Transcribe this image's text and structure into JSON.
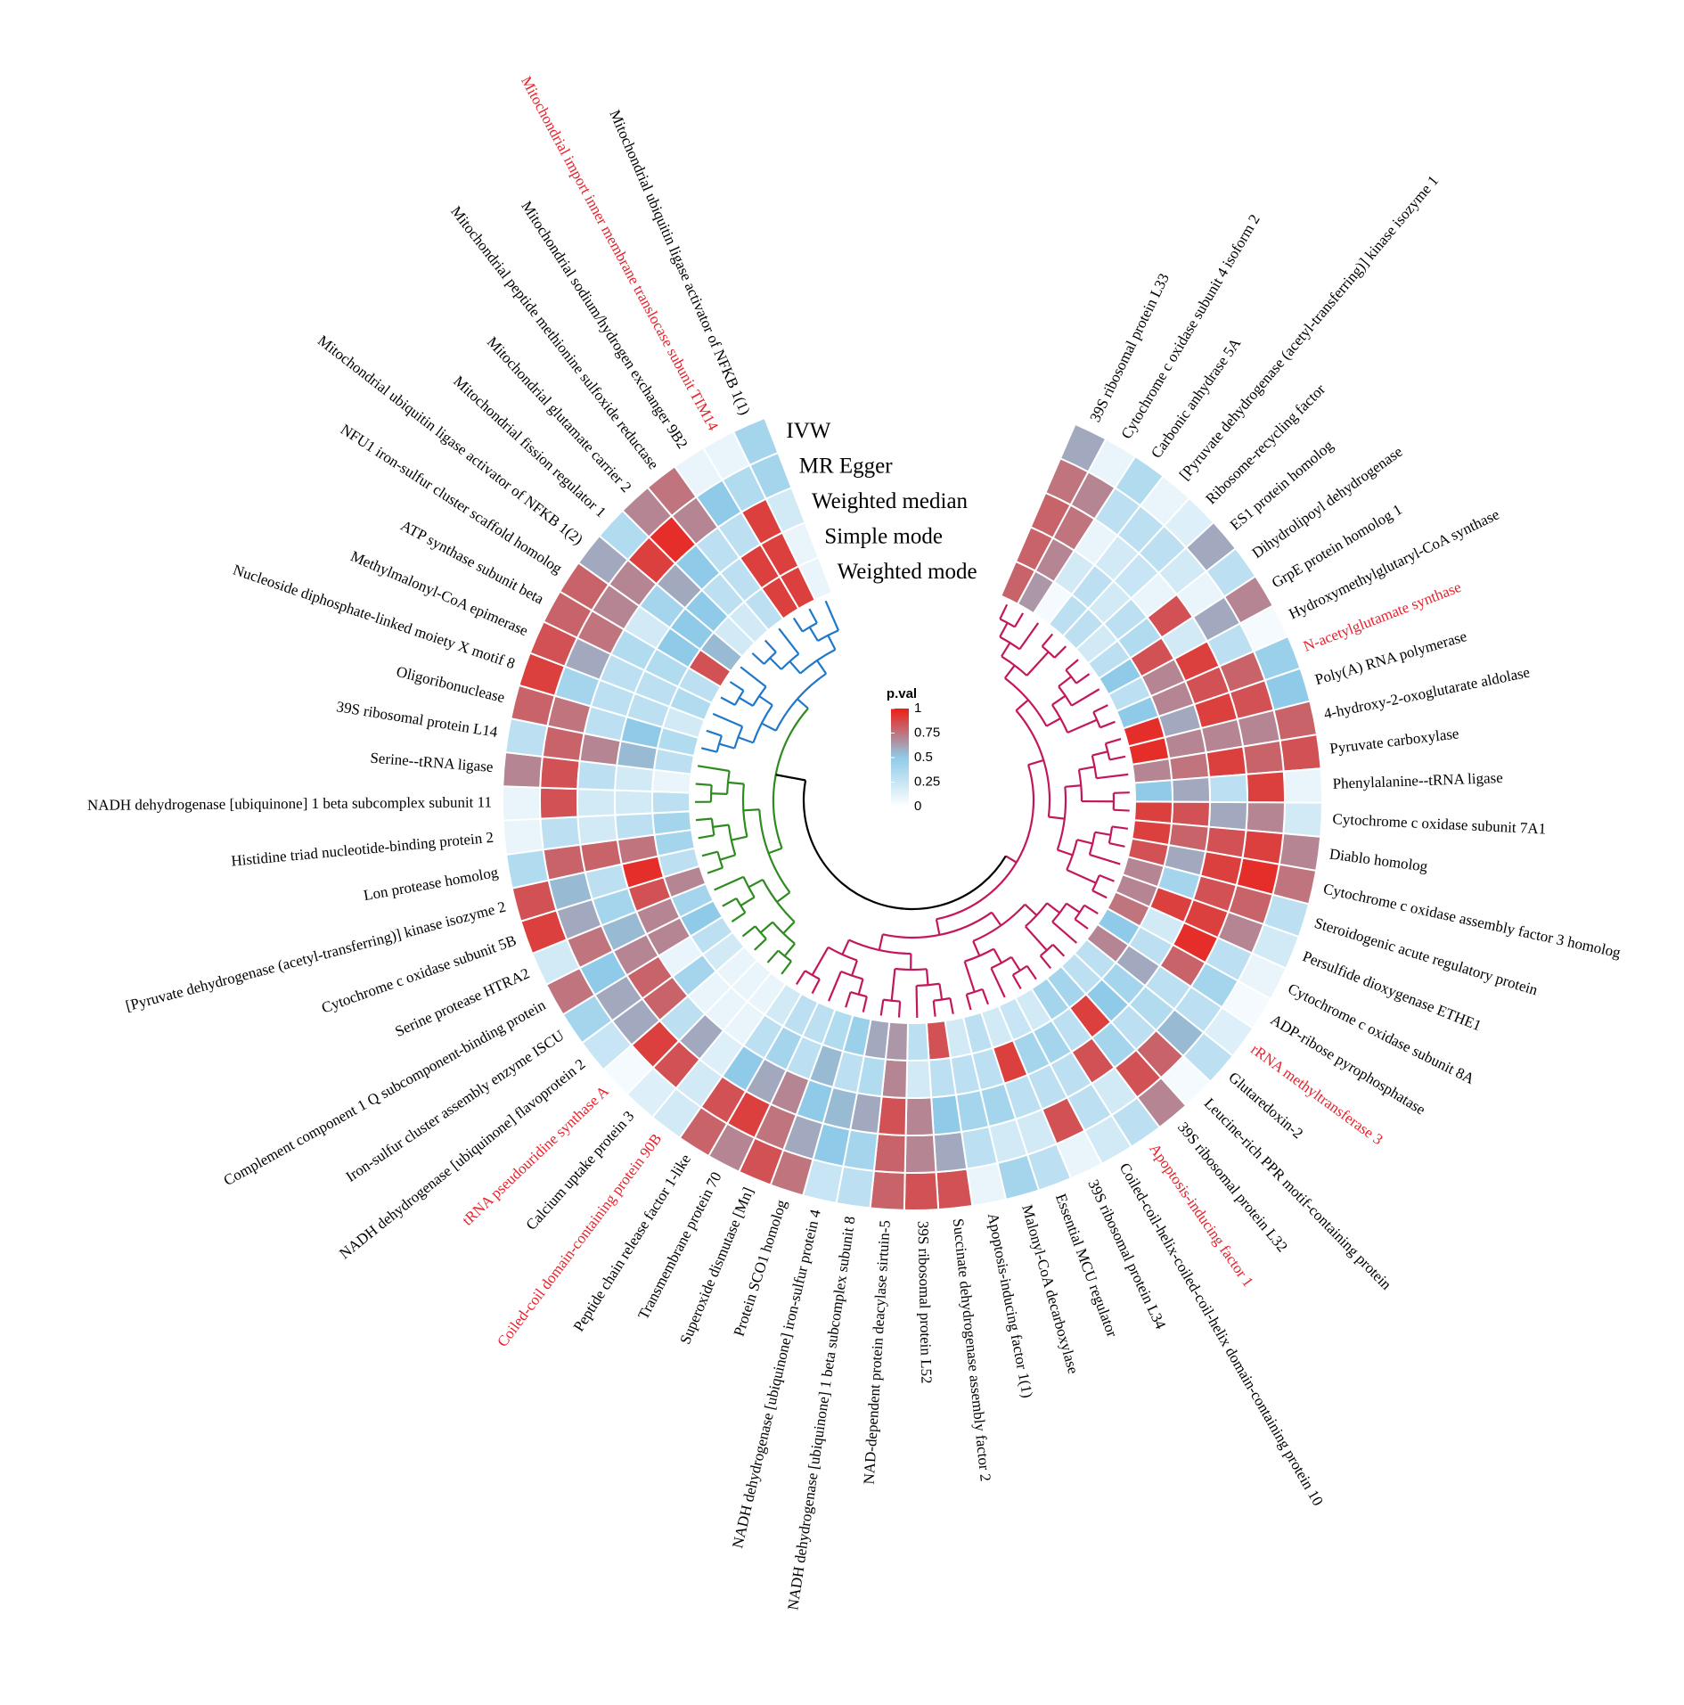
{
  "chart_data": {
    "type": "circular-heatmap",
    "categories": [
      "39S ribosomal protein L33",
      "Cytochrome c oxidase subunit 4 isoform 2",
      "Carbonic anhydrase 5A",
      "[Pyruvate dehydrogenase (acetyl-transferring)] kinase isozyme 1",
      "Ribosome-recycling factor",
      "ES1 protein homolog",
      "Dihydrolipoyl dehydrogenase",
      "GrpE protein homolog 1",
      "Hydroxymethylglutaryl-CoA synthase",
      "N-acetylglutamate synthase",
      "Poly(A) RNA polymerase",
      "4-hydroxy-2-oxoglutarate aldolase",
      "Pyruvate carboxylase",
      "Phenylalanine--tRNA ligase",
      "Cytochrome c oxidase subunit 7A1",
      "Diablo homolog",
      "Cytochrome c oxidase assembly factor 3 homolog",
      "Steroidogenic acute regulatory protein",
      "Persulfide dioxygenase ETHE1",
      "Cytochrome c oxidase subunit 8A",
      "ADP-ribose pyrophosphatase",
      "rRNA methyltransferase 3",
      "Glutaredoxin-2",
      "Leucine-rich PPR motif-containing protein",
      "39S ribosomal protein L32",
      "Apoptosis-inducing factor 1",
      "Coiled-coil-helix-coiled-coil-helix domain-containing protein 10",
      "39S ribosomal protein L34",
      "Essential MCU regulator",
      "Malonyl-CoA decarboxylase",
      "Apoptosis-inducing factor 1(1)",
      "Succinate dehydrogenase assembly factor 2",
      "39S ribosomal protein L52",
      "NAD-dependent protein deacylase sirtuin-5",
      "NADH dehydrogenase [ubiquinone] 1 beta subcomplex subunit 8",
      "NADH dehydrogenase [ubiquinone] iron-sulfur protein 4",
      "Protein SCO1 homolog",
      "Superoxide dismutase [Mn]",
      "Transmembrane protein 70",
      "Peptide chain release factor 1-like",
      "Coiled-coil domain-containing protein 90B",
      "Calcium uptake protein 3",
      "tRNA pseudouridine synthase A",
      "NADH dehydrogenase [ubiquinone] flavoprotein 2",
      "Iron-sulfur cluster assembly enzyme ISCU",
      "Complement component 1 Q subcomponent-binding protein",
      "Serine protease HTRA2",
      "Cytochrome c oxidase subunit 5B",
      "[Pyruvate dehydrogenase (acetyl-transferring)] kinase isozyme 2",
      "Lon protease homolog",
      "Histidine triad nucleotide-binding protein 2",
      "NADH dehydrogenase [ubiquinone] 1 beta subcomplex subunit 11",
      "Serine--tRNA ligase",
      "39S ribosomal protein L14",
      "Oligoribonuclease",
      "Nucleoside diphosphate-linked moiety X motif 8",
      "Methylmalonyl-CoA epimerase",
      "ATP synthase subunit beta",
      "NFU1 iron-sulfur cluster scaffold homolog",
      "Mitochondrial ubiquitin ligase activator of NFKB 1(2)",
      "Mitochondrial fission regulator 1",
      "Mitochondrial glutamate carrier 2",
      "Mitochondrial peptide methionine sulfoxide reductase",
      "Mitochondrial sodium/hydrogen exchanger 9B2",
      "Mitochondrial import inner membrane translocase subunit TIM14",
      "Mitochondrial ubiquitin ligase activator of NFKB 1(1)"
    ],
    "category_colors": [
      "#000000",
      "#000000",
      "#000000",
      "#000000",
      "#000000",
      "#000000",
      "#000000",
      "#000000",
      "#000000",
      "#e8202a",
      "#000000",
      "#000000",
      "#000000",
      "#000000",
      "#000000",
      "#000000",
      "#000000",
      "#000000",
      "#000000",
      "#000000",
      "#000000",
      "#e8202a",
      "#000000",
      "#000000",
      "#000000",
      "#e8202a",
      "#000000",
      "#000000",
      "#000000",
      "#000000",
      "#000000",
      "#000000",
      "#000000",
      "#000000",
      "#000000",
      "#000000",
      "#000000",
      "#000000",
      "#000000",
      "#000000",
      "#e8202a",
      "#000000",
      "#e8202a",
      "#000000",
      "#000000",
      "#000000",
      "#000000",
      "#000000",
      "#000000",
      "#000000",
      "#000000",
      "#000000",
      "#000000",
      "#000000",
      "#000000",
      "#000000",
      "#000000",
      "#000000",
      "#000000",
      "#000000",
      "#000000",
      "#000000",
      "#000000",
      "#000000",
      "#e8202a",
      "#000000"
    ],
    "series": [
      {
        "name": "IVW",
        "values": [
          0.6,
          0.1,
          0.35,
          0.1,
          0.15,
          0.6,
          0.3,
          0.7,
          0.05,
          0.45,
          0.5,
          0.8,
          0.85,
          0.1,
          0.2,
          0.7,
          0.75,
          0.3,
          0.2,
          0.1,
          0.05,
          0.15,
          0.3,
          0.05,
          0.7,
          0.3,
          0.2,
          0.1,
          0.3,
          0.4,
          0.1,
          0.85,
          0.85,
          0.8,
          0.3,
          0.25,
          0.75,
          0.85,
          0.7,
          0.8,
          0.2,
          0.15,
          0.05,
          0.25,
          0.4,
          0.75,
          0.2,
          0.9,
          0.85,
          0.35,
          0.1,
          0.1,
          0.7,
          0.3,
          0.8,
          0.9,
          0.85,
          0.8,
          0.8,
          0.6,
          0.35,
          0.7,
          0.75,
          0.1,
          0.1,
          0.4
        ]
      },
      {
        "name": "MR Egger",
        "values": [
          0.75,
          0.7,
          0.3,
          0.3,
          0.3,
          0.2,
          0.1,
          0.6,
          0.3,
          0.8,
          0.85,
          0.7,
          0.8,
          0.9,
          0.7,
          0.9,
          0.95,
          0.8,
          0.7,
          0.3,
          0.4,
          0.3,
          0.55,
          0.8,
          0.85,
          0.2,
          0.3,
          0.85,
          0.2,
          0.2,
          0.3,
          0.6,
          0.7,
          0.8,
          0.4,
          0.5,
          0.6,
          0.75,
          0.9,
          0.85,
          0.2,
          0.85,
          0.9,
          0.6,
          0.6,
          0.5,
          0.75,
          0.6,
          0.55,
          0.8,
          0.3,
          0.85,
          0.85,
          0.8,
          0.75,
          0.4,
          0.6,
          0.75,
          0.7,
          0.7,
          0.9,
          0.95,
          0.7,
          0.5,
          0.35,
          0.4
        ]
      },
      {
        "name": "Weighted median",
        "values": [
          0.8,
          0.75,
          0.1,
          0.2,
          0.25,
          0.1,
          0.85,
          0.2,
          0.9,
          0.85,
          0.9,
          0.7,
          0.9,
          0.3,
          0.6,
          0.85,
          0.9,
          0.85,
          0.9,
          0.95,
          0.8,
          0.3,
          0.35,
          0.3,
          0.4,
          0.85,
          0.3,
          0.3,
          0.3,
          0.4,
          0.4,
          0.5,
          0.7,
          0.85,
          0.6,
          0.55,
          0.5,
          0.7,
          0.6,
          0.5,
          0.15,
          0.6,
          0.3,
          0.8,
          0.8,
          0.7,
          0.55,
          0.4,
          0.3,
          0.8,
          0.2,
          0.2,
          0.3,
          0.7,
          0.3,
          0.3,
          0.3,
          0.35,
          0.2,
          0.4,
          0.6,
          0.5,
          0.3,
          0.3,
          0.9,
          0.2
        ]
      },
      {
        "name": "Simple mode",
        "values": [
          0.8,
          0.7,
          0.2,
          0.3,
          0.2,
          0.3,
          0.35,
          0.85,
          0.7,
          0.7,
          0.6,
          0.7,
          0.75,
          0.6,
          0.85,
          0.8,
          0.6,
          0.4,
          0.9,
          0.2,
          0.3,
          0.6,
          0.4,
          0.5,
          0.9,
          0.3,
          0.4,
          0.4,
          0.9,
          0.3,
          0.3,
          0.3,
          0.2,
          0.7,
          0.35,
          0.3,
          0.55,
          0.3,
          0.4,
          0.3,
          0.1,
          0.1,
          0.1,
          0.4,
          0.1,
          0.7,
          0.7,
          0.85,
          0.95,
          0.75,
          0.3,
          0.2,
          0.2,
          0.55,
          0.5,
          0.3,
          0.3,
          0.35,
          0.5,
          0.5,
          0.5,
          0.3,
          0.3,
          0.9,
          0.9,
          0.1
        ]
      },
      {
        "name": "Weighted mode",
        "values": [
          0.8,
          0.65,
          0.05,
          0.3,
          0.3,
          0.2,
          0.3,
          0.5,
          0.3,
          0.5,
          0.95,
          0.95,
          0.7,
          0.5,
          0.9,
          0.9,
          0.85,
          0.7,
          0.7,
          0.75,
          0.5,
          0.7,
          0.3,
          0.3,
          0.4,
          0.4,
          0.2,
          0.25,
          0.2,
          0.3,
          0.2,
          0.85,
          0.3,
          0.65,
          0.6,
          0.45,
          0.35,
          0.3,
          0.3,
          0.2,
          0.1,
          0.1,
          0.1,
          0.2,
          0.3,
          0.5,
          0.4,
          0.7,
          0.3,
          0.4,
          0.4,
          0.3,
          0.1,
          0.3,
          0.35,
          0.2,
          0.35,
          0.3,
          0.85,
          0.55,
          0.2,
          0.2,
          0.3,
          0.9,
          0.9,
          0.1
        ]
      }
    ],
    "legend_title": "p.val",
    "clim": [
      0,
      1
    ],
    "cticks": [
      0,
      0.25,
      0.5,
      0.75,
      1
    ],
    "colors": [
      "#ffffff",
      "#8fcbe8",
      "#ee1d14"
    ]
  }
}
